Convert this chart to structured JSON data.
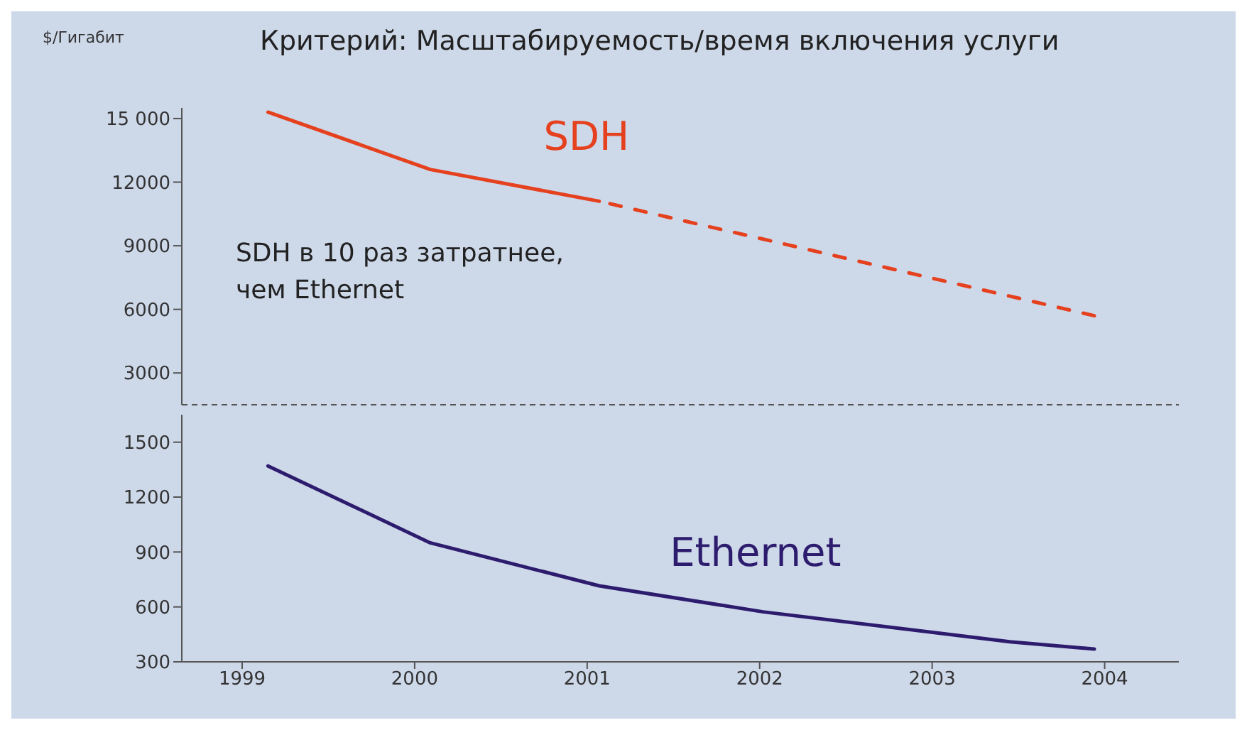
{
  "chart_data": [
    {
      "type": "line",
      "title": "Критерий: Масштабируемость/время включения услуги",
      "ylabel": "$/Гигабит",
      "annotations": [
        "SDH в 10 раз затратнее,\nчем Ethernet"
      ],
      "xlim": [
        1998.65,
        2004.43
      ],
      "ylim": [
        1500,
        15500
      ],
      "yticks": [
        3000,
        6000,
        9000,
        12000,
        {
          "value": 15000,
          "label": "15 000"
        }
      ],
      "tick_labels": "y",
      "series": [
        {
          "name": "SDH",
          "color": "#e5411e",
          "line_style": "solid",
          "x": [
            1999.15,
            2000.09,
            2001.07
          ],
          "values": [
            15300,
            12600,
            11100
          ]
        },
        {
          "color": "#e5411e",
          "line_style": "dashed",
          "x": [
            2003.94,
            2001.07
          ],
          "values": [
            5700,
            11100
          ]
        }
      ]
    },
    {
      "type": "line",
      "xlim": [
        1998.65,
        2004.43
      ],
      "ylim": [
        300,
        1650
      ],
      "xticks": [
        1999,
        2000,
        2001,
        2002,
        2003,
        2004
      ],
      "yticks": [
        300,
        600,
        900,
        1200,
        1500
      ],
      "series": [
        {
          "name": "Ethernet",
          "color": "#2d1c6e",
          "line_style": "solid",
          "x": [
            1999.15,
            2000.09,
            2001.07,
            2002.02,
            2003.45,
            2003.94
          ],
          "values": [
            1370,
            950,
            715,
            573,
            410,
            370
          ]
        }
      ]
    }
  ]
}
